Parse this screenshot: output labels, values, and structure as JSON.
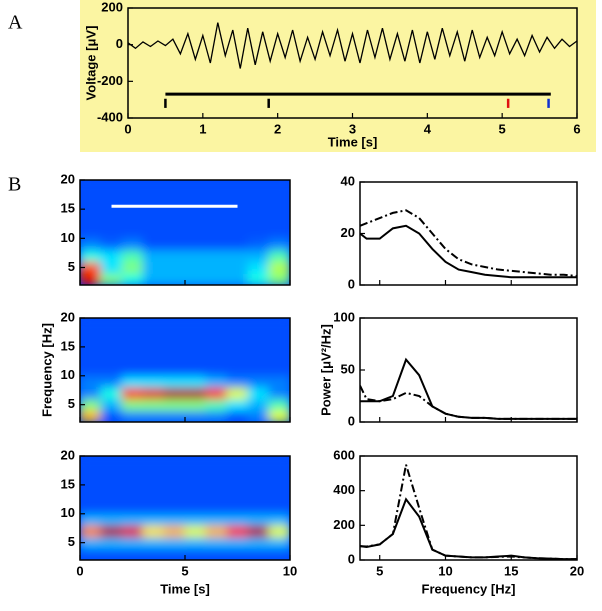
{
  "chart_data": [
    {
      "type": "line",
      "panel": "A",
      "xlabel": "Time [s]",
      "ylabel": "Voltage [μV]",
      "background": "#fbf5a2",
      "xlim": [
        0,
        6
      ],
      "xticks": [
        0,
        1,
        2,
        3,
        4,
        5,
        6
      ],
      "ylim": [
        -400,
        200
      ],
      "yticks": [
        -400,
        -200,
        0,
        200
      ],
      "x": [
        0,
        0.1,
        0.2,
        0.3,
        0.4,
        0.5,
        0.6,
        0.7,
        0.8,
        0.9,
        1,
        1.1,
        1.2,
        1.3,
        1.4,
        1.5,
        1.6,
        1.7,
        1.8,
        1.9,
        2,
        2.1,
        2.2,
        2.3,
        2.4,
        2.5,
        2.6,
        2.7,
        2.8,
        2.9,
        3,
        3.1,
        3.2,
        3.3,
        3.4,
        3.5,
        3.6,
        3.7,
        3.8,
        3.9,
        4,
        4.1,
        4.2,
        4.3,
        4.4,
        4.5,
        4.6,
        4.7,
        4.8,
        4.9,
        5,
        5.1,
        5.2,
        5.3,
        5.4,
        5.5,
        5.6,
        5.7,
        5.8,
        5.9,
        6
      ],
      "series": [
        {
          "color": "#000000",
          "style": "solid",
          "values": [
            10,
            -20,
            15,
            -10,
            20,
            -5,
            30,
            -50,
            60,
            -80,
            50,
            -100,
            120,
            -60,
            80,
            -130,
            90,
            -110,
            70,
            -90,
            60,
            -70,
            80,
            -90,
            40,
            -80,
            70,
            -60,
            80,
            -90,
            60,
            -100,
            80,
            -70,
            90,
            -80,
            60,
            -90,
            80,
            -100,
            70,
            -80,
            90,
            -60,
            70,
            -90,
            80,
            -70,
            40,
            -60,
            70,
            -50,
            30,
            -60,
            50,
            -40,
            40,
            -20,
            30,
            -10,
            20
          ]
        }
      ],
      "bar_range": [
        0.5,
        5.65
      ],
      "bar_level": -270,
      "bar_color": "#000000",
      "markers": [
        {
          "x": 0.5,
          "color": "#000000"
        },
        {
          "x": 1.88,
          "color": "#000000"
        },
        {
          "x": 5.08,
          "color": "#e01010"
        },
        {
          "x": 5.62,
          "color": "#1030d0"
        }
      ],
      "marker_range": [
        -295,
        -345
      ]
    },
    {
      "type": "heatmap",
      "panel": "B",
      "xlim": [
        0,
        10
      ],
      "xticks": [
        0,
        5,
        10
      ],
      "show_xtick_labels": false,
      "ylim": [
        2,
        20
      ],
      "yticks": [
        5,
        10,
        15,
        20
      ],
      "zlim": [
        0,
        1
      ],
      "xbins": [
        0,
        1,
        2,
        3,
        4,
        5,
        6,
        7,
        8,
        9,
        10
      ],
      "ybins": [
        2,
        4,
        6,
        8,
        10,
        12,
        14,
        16,
        18,
        20
      ],
      "z": [
        [
          0.9,
          0.5,
          0.4,
          0.3,
          0.3,
          0.3,
          0.3,
          0.3,
          0.4,
          0.5
        ],
        [
          0.8,
          0.35,
          0.5,
          0.3,
          0.3,
          0.3,
          0.3,
          0.3,
          0.35,
          0.55
        ],
        [
          0.4,
          0.35,
          0.45,
          0.3,
          0.3,
          0.3,
          0.3,
          0.3,
          0.3,
          0.45
        ],
        [
          0.25,
          0.22,
          0.25,
          0.2,
          0.2,
          0.2,
          0.2,
          0.2,
          0.22,
          0.25
        ],
        [
          0.2,
          0.2,
          0.2,
          0.2,
          0.2,
          0.2,
          0.2,
          0.2,
          0.2,
          0.2
        ],
        [
          0.2,
          0.2,
          0.2,
          0.2,
          0.2,
          0.2,
          0.2,
          0.2,
          0.2,
          0.2
        ],
        [
          0.2,
          0.2,
          0.2,
          0.2,
          0.2,
          0.2,
          0.2,
          0.2,
          0.2,
          0.2
        ],
        [
          0.2,
          0.2,
          0.2,
          0.2,
          0.2,
          0.2,
          0.2,
          0.2,
          0.2,
          0.2
        ],
        [
          0.2,
          0.2,
          0.2,
          0.2,
          0.2,
          0.2,
          0.2,
          0.2,
          0.2,
          0.2
        ]
      ],
      "bar_range": [
        1.5,
        7.5
      ],
      "bar_level": 15.5,
      "bar_color": "#ffffff"
    },
    {
      "type": "heatmap",
      "ylabel": "Frequency [Hz]",
      "xlim": [
        0,
        10
      ],
      "xticks": [
        0,
        5,
        10
      ],
      "show_xtick_labels": false,
      "ylim": [
        2,
        20
      ],
      "yticks": [
        5,
        10,
        15,
        20
      ],
      "zlim": [
        0,
        1
      ],
      "xbins": [
        0,
        1,
        2,
        3,
        4,
        5,
        6,
        7,
        8,
        9,
        10
      ],
      "ybins": [
        2,
        4,
        6,
        8,
        10,
        12,
        14,
        16,
        18,
        20
      ],
      "z": [
        [
          0.7,
          0.2,
          0.25,
          0.25,
          0.25,
          0.25,
          0.25,
          0.2,
          0.25,
          0.6
        ],
        [
          0.5,
          0.3,
          0.5,
          0.5,
          0.5,
          0.5,
          0.45,
          0.35,
          0.3,
          0.45
        ],
        [
          0.25,
          0.4,
          0.85,
          0.9,
          0.95,
          0.95,
          0.85,
          0.6,
          0.35,
          0.25
        ],
        [
          0.25,
          0.25,
          0.35,
          0.35,
          0.35,
          0.35,
          0.3,
          0.25,
          0.25,
          0.25
        ],
        [
          0.2,
          0.2,
          0.2,
          0.2,
          0.2,
          0.2,
          0.2,
          0.2,
          0.2,
          0.2
        ],
        [
          0.2,
          0.2,
          0.2,
          0.2,
          0.2,
          0.2,
          0.2,
          0.2,
          0.2,
          0.2
        ],
        [
          0.2,
          0.2,
          0.2,
          0.2,
          0.2,
          0.2,
          0.2,
          0.2,
          0.2,
          0.2
        ],
        [
          0.2,
          0.2,
          0.2,
          0.2,
          0.2,
          0.2,
          0.2,
          0.2,
          0.2,
          0.2
        ],
        [
          0.2,
          0.2,
          0.2,
          0.2,
          0.2,
          0.2,
          0.2,
          0.2,
          0.2,
          0.2
        ]
      ]
    },
    {
      "type": "heatmap",
      "xlabel": "Time [s]",
      "xlim": [
        0,
        10
      ],
      "xticks": [
        0,
        5,
        10
      ],
      "ylim": [
        2,
        20
      ],
      "yticks": [
        5,
        10,
        15,
        20
      ],
      "zlim": [
        0,
        1
      ],
      "xbins": [
        0,
        1,
        2,
        3,
        4,
        5,
        6,
        7,
        8,
        9,
        10
      ],
      "ybins": [
        2,
        4,
        6,
        8,
        10,
        12,
        14,
        16,
        18,
        20
      ],
      "z": [
        [
          0.2,
          0.2,
          0.2,
          0.2,
          0.2,
          0.2,
          0.2,
          0.2,
          0.2,
          0.2
        ],
        [
          0.3,
          0.3,
          0.3,
          0.3,
          0.3,
          0.3,
          0.3,
          0.3,
          0.3,
          0.3
        ],
        [
          0.75,
          0.95,
          0.9,
          0.65,
          0.7,
          0.6,
          0.7,
          0.85,
          0.95,
          0.6
        ],
        [
          0.3,
          0.3,
          0.3,
          0.3,
          0.3,
          0.3,
          0.3,
          0.3,
          0.3,
          0.3
        ],
        [
          0.2,
          0.2,
          0.2,
          0.2,
          0.2,
          0.2,
          0.2,
          0.2,
          0.2,
          0.2
        ],
        [
          0.2,
          0.2,
          0.2,
          0.2,
          0.2,
          0.2,
          0.2,
          0.2,
          0.2,
          0.2
        ],
        [
          0.2,
          0.2,
          0.2,
          0.2,
          0.2,
          0.2,
          0.2,
          0.2,
          0.2,
          0.2
        ],
        [
          0.2,
          0.2,
          0.2,
          0.2,
          0.2,
          0.2,
          0.2,
          0.2,
          0.2,
          0.2
        ],
        [
          0.2,
          0.2,
          0.2,
          0.2,
          0.2,
          0.2,
          0.2,
          0.2,
          0.2,
          0.2
        ]
      ]
    },
    {
      "type": "line",
      "xlim": [
        3.5,
        20
      ],
      "xticks": [
        5,
        10,
        15,
        20
      ],
      "show_xtick_labels": false,
      "ylim": [
        0,
        40
      ],
      "yticks": [
        0,
        20,
        40
      ],
      "x": [
        3.5,
        4,
        5,
        6,
        7,
        8,
        9,
        10,
        11,
        12,
        13,
        14,
        15,
        16,
        17,
        18,
        19,
        20
      ],
      "series": [
        {
          "color": "#000000",
          "style": "solid",
          "values": [
            20,
            18,
            18,
            22,
            23,
            20,
            14,
            9,
            6,
            5,
            4,
            3.5,
            3,
            3,
            3,
            3,
            3,
            3
          ]
        },
        {
          "color": "#000000",
          "style": "dashdot",
          "values": [
            23,
            24,
            26,
            28,
            29,
            26,
            20,
            14,
            10,
            8,
            7,
            6,
            5.5,
            5,
            4.5,
            4,
            4,
            3.5
          ]
        }
      ]
    },
    {
      "type": "line",
      "ylabel": "Power [μV²/Hz]",
      "xlim": [
        3.5,
        20
      ],
      "xticks": [
        5,
        10,
        15,
        20
      ],
      "show_xtick_labels": false,
      "ylim": [
        0,
        100
      ],
      "yticks": [
        0,
        50,
        100
      ],
      "x": [
        3.5,
        4,
        5,
        6,
        7,
        8,
        9,
        10,
        11,
        12,
        13,
        14,
        15,
        16,
        17,
        18,
        19,
        20
      ],
      "series": [
        {
          "color": "#000000",
          "style": "solid",
          "values": [
            20,
            20,
            20,
            25,
            60,
            45,
            15,
            8,
            5,
            4,
            4,
            3,
            3,
            3,
            3,
            3,
            3,
            3
          ]
        },
        {
          "color": "#000000",
          "style": "dashdot",
          "values": [
            35,
            22,
            20,
            22,
            28,
            25,
            15,
            8,
            5,
            4,
            4,
            3,
            3,
            3,
            3,
            3,
            3,
            3
          ]
        }
      ]
    },
    {
      "type": "line",
      "xlabel": "Frequency [Hz]",
      "xlim": [
        3.5,
        20
      ],
      "xticks": [
        5,
        10,
        15,
        20
      ],
      "ylim": [
        0,
        600
      ],
      "yticks": [
        0,
        200,
        400,
        600
      ],
      "x": [
        3.5,
        4,
        5,
        6,
        7,
        8,
        9,
        10,
        11,
        12,
        13,
        14,
        15,
        16,
        17,
        18,
        19,
        20
      ],
      "series": [
        {
          "color": "#000000",
          "style": "solid",
          "values": [
            80,
            75,
            90,
            150,
            350,
            250,
            60,
            25,
            20,
            15,
            15,
            20,
            25,
            15,
            10,
            8,
            5,
            5
          ]
        },
        {
          "color": "#000000",
          "style": "dashdot",
          "values": [
            80,
            78,
            90,
            150,
            550,
            300,
            60,
            25,
            20,
            15,
            15,
            18,
            20,
            15,
            10,
            8,
            5,
            5
          ]
        }
      ]
    }
  ]
}
